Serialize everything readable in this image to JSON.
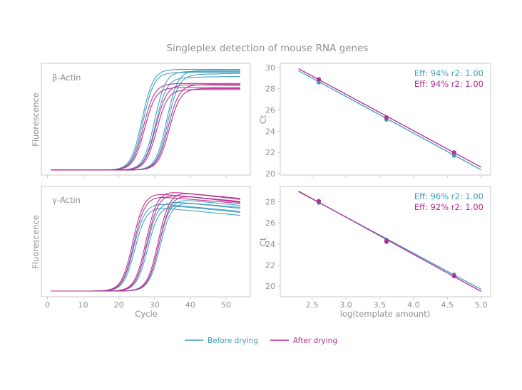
{
  "title": "Singleplex detection of mouse RNA genes",
  "colors": {
    "before": "#3d9cbd",
    "after": "#b62a8f",
    "axis": "#c8c8c8",
    "text": "#8f8f8f"
  },
  "legend": {
    "placement": "bottom-center",
    "items": [
      {
        "label": "Before drying",
        "color_key": "before"
      },
      {
        "label": "After drying",
        "color_key": "after"
      }
    ]
  },
  "chart_data": [
    {
      "id": "beta-amplification",
      "type": "line",
      "annotation": "β-Actin",
      "xlabel": "",
      "ylabel": "Fluorescence",
      "xlim": [
        -1.7,
        56.8
      ],
      "ylim": [
        -0.05,
        1.06
      ],
      "xticks": [
        0,
        10,
        20,
        30,
        40,
        50
      ],
      "xticklabels_shown": false,
      "grid": false,
      "series": [
        {
          "name": "Before drying",
          "color_key": "before",
          "curves": [
            {
              "midpoint_cycle": 26.5,
              "plateau": 1.0,
              "end": 1.0
            },
            {
              "midpoint_cycle": 26.8,
              "plateau": 0.97,
              "end": 0.97
            },
            {
              "midpoint_cycle": 30.0,
              "plateau": 0.98,
              "end": 0.98
            },
            {
              "midpoint_cycle": 30.3,
              "plateau": 0.92,
              "end": 0.93
            },
            {
              "midpoint_cycle": 33.4,
              "plateau": 0.99,
              "end": 0.99
            },
            {
              "midpoint_cycle": 33.7,
              "plateau": 0.95,
              "end": 0.96
            }
          ]
        },
        {
          "name": "After drying",
          "color_key": "after",
          "curves": [
            {
              "midpoint_cycle": 26.9,
              "plateau": 0.86,
              "end": 0.86
            },
            {
              "midpoint_cycle": 27.2,
              "plateau": 0.82,
              "end": 0.82
            },
            {
              "midpoint_cycle": 30.3,
              "plateau": 0.85,
              "end": 0.84
            },
            {
              "midpoint_cycle": 30.6,
              "plateau": 0.8,
              "end": 0.8
            },
            {
              "midpoint_cycle": 33.8,
              "plateau": 0.85,
              "end": 0.85
            },
            {
              "midpoint_cycle": 34.1,
              "plateau": 0.81,
              "end": 0.81
            }
          ]
        }
      ]
    },
    {
      "id": "beta-standard-curve",
      "type": "scatter",
      "xlabel": "",
      "ylabel": "Ct",
      "xlim": [
        2.03,
        5.14
      ],
      "ylim": [
        19.86,
        30.4
      ],
      "xticks": [
        2.5,
        3.0,
        3.5,
        4.0,
        4.5,
        5.0
      ],
      "xticklabels_shown": false,
      "yticks": [
        20,
        22,
        24,
        26,
        28,
        30
      ],
      "grid": false,
      "series": [
        {
          "name": "Before drying",
          "color_key": "before",
          "label": "Eff: 94% r2: 1.00",
          "x": [
            2.6,
            3.6,
            4.6
          ],
          "y": [
            28.6,
            25.1,
            21.7
          ],
          "fit": {
            "x": [
              2.3,
              5.0
            ],
            "y": [
              29.7,
              20.35
            ]
          }
        },
        {
          "name": "After drying",
          "color_key": "after",
          "label": "Eff: 94% r2: 1.00",
          "x": [
            2.6,
            3.6,
            4.6
          ],
          "y": [
            28.9,
            25.3,
            22.0
          ],
          "fit": {
            "x": [
              2.3,
              5.0
            ],
            "y": [
              29.9,
              20.6
            ]
          }
        }
      ]
    },
    {
      "id": "gamma-amplification",
      "type": "line",
      "annotation": "γ-Actin",
      "xlabel": "Cycle",
      "ylabel": "Fluorescence",
      "xlim": [
        -1.7,
        56.8
      ],
      "ylim": [
        -0.057,
        1.05
      ],
      "xticks": [
        0,
        10,
        20,
        30,
        40,
        50
      ],
      "xticklabels_shown": true,
      "grid": false,
      "series": [
        {
          "name": "Before drying",
          "color_key": "before",
          "curves": [
            {
              "midpoint_cycle": 24.2,
              "plateau": 0.88,
              "end": 0.8
            },
            {
              "midpoint_cycle": 24.5,
              "plateau": 0.84,
              "end": 0.76
            },
            {
              "midpoint_cycle": 27.8,
              "plateau": 0.9,
              "end": 0.84
            },
            {
              "midpoint_cycle": 28.1,
              "plateau": 0.86,
              "end": 0.79
            },
            {
              "midpoint_cycle": 31.2,
              "plateau": 0.92,
              "end": 0.86
            },
            {
              "midpoint_cycle": 31.5,
              "plateau": 0.89,
              "end": 0.83
            }
          ]
        },
        {
          "name": "After drying",
          "color_key": "after",
          "curves": [
            {
              "midpoint_cycle": 23.9,
              "plateau": 0.98,
              "end": 0.9
            },
            {
              "midpoint_cycle": 24.2,
              "plateau": 0.95,
              "end": 0.88
            },
            {
              "midpoint_cycle": 27.6,
              "plateau": 1.0,
              "end": 0.93
            },
            {
              "midpoint_cycle": 27.9,
              "plateau": 0.97,
              "end": 0.89
            },
            {
              "midpoint_cycle": 31.0,
              "plateau": 0.99,
              "end": 0.92
            },
            {
              "midpoint_cycle": 31.3,
              "plateau": 0.96,
              "end": 0.89
            }
          ]
        }
      ]
    },
    {
      "id": "gamma-standard-curve",
      "type": "scatter",
      "xlabel": "log(template amount)",
      "ylabel": "Ct",
      "xlim": [
        2.03,
        5.14
      ],
      "ylim": [
        19.0,
        29.44
      ],
      "xticks": [
        2.5,
        3.0,
        3.5,
        4.0,
        4.5,
        5.0
      ],
      "xticklabels_shown": true,
      "yticks": [
        20,
        22,
        24,
        26,
        28
      ],
      "grid": false,
      "series": [
        {
          "name": "Before drying",
          "color_key": "before",
          "label": "Eff: 96% r2: 1.00",
          "x": [
            2.6,
            3.6,
            4.6
          ],
          "y": [
            27.9,
            24.4,
            21.1
          ],
          "fit": {
            "x": [
              2.3,
              5.0
            ],
            "y": [
              28.95,
              19.7
            ]
          }
        },
        {
          "name": "After drying",
          "color_key": "after",
          "label": "Eff: 92% r2: 1.00",
          "x": [
            2.6,
            3.6,
            4.6
          ],
          "y": [
            28.05,
            24.2,
            20.95
          ],
          "fit": {
            "x": [
              2.3,
              5.0
            ],
            "y": [
              29.0,
              19.5
            ]
          }
        }
      ]
    }
  ]
}
